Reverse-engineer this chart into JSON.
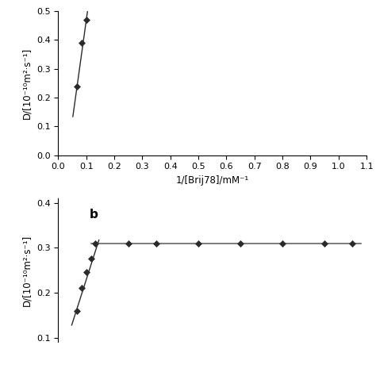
{
  "plot_a": {
    "x_data": [
      0.067,
      0.083,
      0.1
    ],
    "y_data": [
      0.238,
      0.39,
      0.47
    ],
    "line_x_start": 0.052,
    "line_x_end": 0.118,
    "slope": 7.0,
    "intercept": -0.23,
    "xlim": [
      0,
      1.1
    ],
    "ylim": [
      0,
      0.5
    ],
    "xticks": [
      0,
      0.1,
      0.2,
      0.3,
      0.4,
      0.5,
      0.6,
      0.7,
      0.8,
      0.9,
      1.0,
      1.1
    ],
    "yticks": [
      0,
      0.1,
      0.2,
      0.3,
      0.4,
      0.5
    ],
    "xlabel": "1/[Brij78]/mM⁻¹",
    "ylabel": "D/[10⁻¹⁰m²·s⁻¹]"
  },
  "plot_b": {
    "x_data": [
      0.067,
      0.083,
      0.1,
      0.117,
      0.133,
      0.25,
      0.35,
      0.5,
      0.65,
      0.8,
      0.95,
      1.05
    ],
    "y_data": [
      0.16,
      0.21,
      0.245,
      0.275,
      0.31,
      0.31,
      0.31,
      0.31,
      0.31,
      0.31,
      0.31,
      0.31
    ],
    "line1_x_start": 0.048,
    "line1_x_end": 0.145,
    "line1_slope": 1.95,
    "line1_y_at_start": 0.128,
    "line2_y": 0.31,
    "line2_x_start": 0.118,
    "line2_x_end": 1.08,
    "xlim": [
      0,
      1.1
    ],
    "ylim": [
      0.09,
      0.41
    ],
    "yticks": [
      0.1,
      0.2,
      0.3,
      0.4
    ],
    "ylabel": "D/[10⁻¹⁰m²·s⁻¹]",
    "label": "b"
  },
  "marker_style": "D",
  "marker_size": 4.5,
  "marker_color": "#2b2b2b",
  "marker_edge_color": "#2b2b2b",
  "line_color": "#2b2b2b",
  "line2_color": "#666666",
  "background_color": "#ffffff",
  "tick_fontsize": 8,
  "label_fontsize": 8.5
}
